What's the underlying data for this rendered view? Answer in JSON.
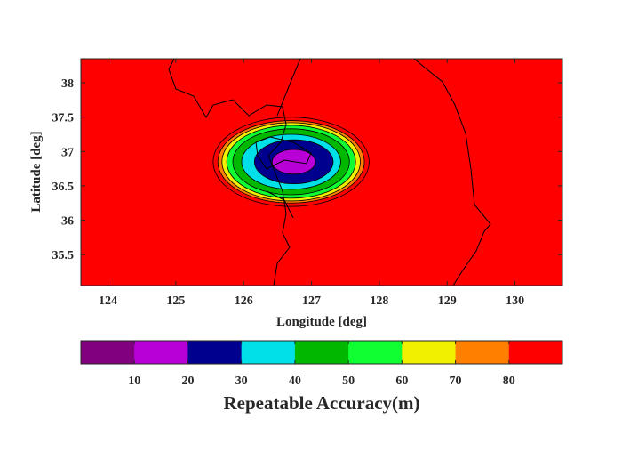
{
  "chart_data": {
    "type": "contour",
    "xlabel": "Longitude [deg]",
    "ylabel": "Latitude [deg]",
    "xlim": [
      123.6,
      130.7
    ],
    "ylim": [
      35.05,
      38.35
    ],
    "xticks": [
      124,
      125,
      126,
      127,
      128,
      129,
      130
    ],
    "yticks": [
      35.5,
      36,
      36.5,
      37,
      37.5,
      38
    ],
    "background_level_color": "#ff0000",
    "contour_center": {
      "lon": 126.7,
      "lat": 36.85
    },
    "contour_levels": [
      {
        "level": 80,
        "color": "#ff0000",
        "rx": 1.15,
        "ry": 0.65
      },
      {
        "level": 70,
        "color": "#ff7f00",
        "rx": 1.08,
        "ry": 0.6
      },
      {
        "level": 60,
        "color": "#f0f000",
        "rx": 1.02,
        "ry": 0.57
      },
      {
        "level": 50,
        "color": "#10ff33",
        "rx": 0.95,
        "ry": 0.53
      },
      {
        "level": 40,
        "color": "#00b800",
        "rx": 0.86,
        "ry": 0.48
      },
      {
        "level": 30,
        "color": "#00e0e8",
        "rx": 0.73,
        "ry": 0.4
      },
      {
        "level": 20,
        "color": "#00008f",
        "rx": 0.58,
        "ry": 0.32
      },
      {
        "level": 10,
        "color": "#b800d6",
        "rx": 0.32,
        "ry": 0.18
      }
    ],
    "colorbar": {
      "label": "Repeatable Accuracy(m)",
      "ticks": [
        10,
        20,
        30,
        40,
        50,
        60,
        70,
        80
      ],
      "range": [
        0,
        90
      ],
      "colors": [
        "#800080",
        "#b800d6",
        "#00008f",
        "#00e0e8",
        "#00b800",
        "#10ff33",
        "#f0f000",
        "#ff7f00",
        "#ff0000"
      ]
    },
    "coastline_color": "#000000",
    "grid": false
  }
}
